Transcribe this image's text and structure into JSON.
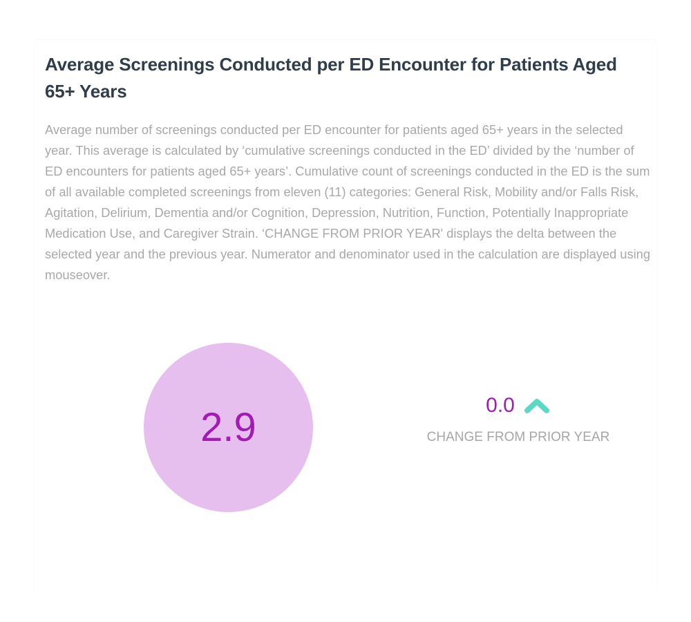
{
  "title": "Average Screenings Conducted per ED Encounter for Patients Aged 65+ Years",
  "description": "Average number of screenings conducted per ED encounter for patients aged 65+ years in the selected year. This average is calculated by ‘cumulative screenings conducted in the ED’ divided by the ‘number of ED encounters for patients aged 65+ years’. Cumulative count of screenings conducted in the ED is the sum of all available completed screenings from eleven (11) categories: General Risk, Mobility and/or Falls Risk, Agitation, Delirium, Dementia and/or Cognition, Depression, Nutrition, Function, Potentially Inappropriate Medication Use, and Caregiver Strain. ‘CHANGE FROM PRIOR YEAR' displays the delta between the selected year and the previous year. Numerator and denominator used in the calculation are displayed using mouseover.",
  "metric": {
    "value": "2.9",
    "color": "#a21bb5",
    "circle_color": "#e7bfef"
  },
  "change": {
    "value": "0.0",
    "label": "CHANGE FROM PRIOR YEAR",
    "icon": "chevron-up-icon",
    "icon_color": "#5cd9c4"
  }
}
